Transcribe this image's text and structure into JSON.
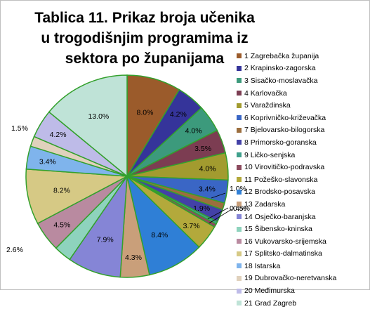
{
  "chart_data": {
    "type": "pie",
    "title": "Tablica 11. Prikaz broja učenika u trogodišnjim programima iz sektora po županijama",
    "categories": [
      "1 Zagrebačka županija",
      "2 Krapinsko-zagorska",
      "3 Sisačko-moslavačka",
      "4 Karlovačka",
      "5 Varaždinska",
      "6 Koprivničko-križevačka",
      "7 Bjelovarsko-bilogorska",
      "8 Primorsko-goranska",
      "9 Ličko-senjska",
      "10 Virovitičko-podravska",
      "11 Požeško-slavonska",
      "12 Brodsko-posavska",
      "13 Zadarska",
      "14 Osječko-baranjska",
      "15 Šibensko-kninska",
      "16 Vukovarsko-srijemska",
      "17 Splitsko-dalmatinska",
      "18 Istarska",
      "19 Dubrovačko-neretvanska",
      "20 Međimurska",
      "21 Grad Zagreb"
    ],
    "values": [
      8.0,
      4.2,
      4.0,
      3.5,
      4.0,
      3.4,
      1.0,
      1.9,
      0.4,
      0.5,
      3.7,
      8.4,
      4.3,
      7.9,
      2.6,
      4.5,
      8.2,
      3.4,
      1.5,
      4.2,
      13.0
    ],
    "data_labels": [
      "8.0%",
      "4.2%",
      "4.0%",
      "3.5%",
      "4.0%",
      "3.4%",
      "1.0%",
      "1.9%",
      "0.4%",
      "0.5%",
      "3.7%",
      "8.4%",
      "4.3%",
      "7.9%",
      "2.6%",
      "4.5%",
      "8.2%",
      "3.4%",
      "1.5%",
      "4.2%",
      "13.0%"
    ],
    "colors": [
      "#9b5b2b",
      "#35349a",
      "#3c9a7c",
      "#7c3d52",
      "#a29b2f",
      "#3a66c5",
      "#9c6e3e",
      "#4341a7",
      "#3fa08c",
      "#8c4a5e",
      "#b3a93b",
      "#2f7fd6",
      "#c99f7a",
      "#8585d6",
      "#8ed3bd",
      "#b98aa0",
      "#d6c985",
      "#7fb4ec",
      "#e0d1bc",
      "#bebbe8",
      "#bfe3d7"
    ],
    "slice_border": "#33a02c",
    "legend_position": "right"
  }
}
